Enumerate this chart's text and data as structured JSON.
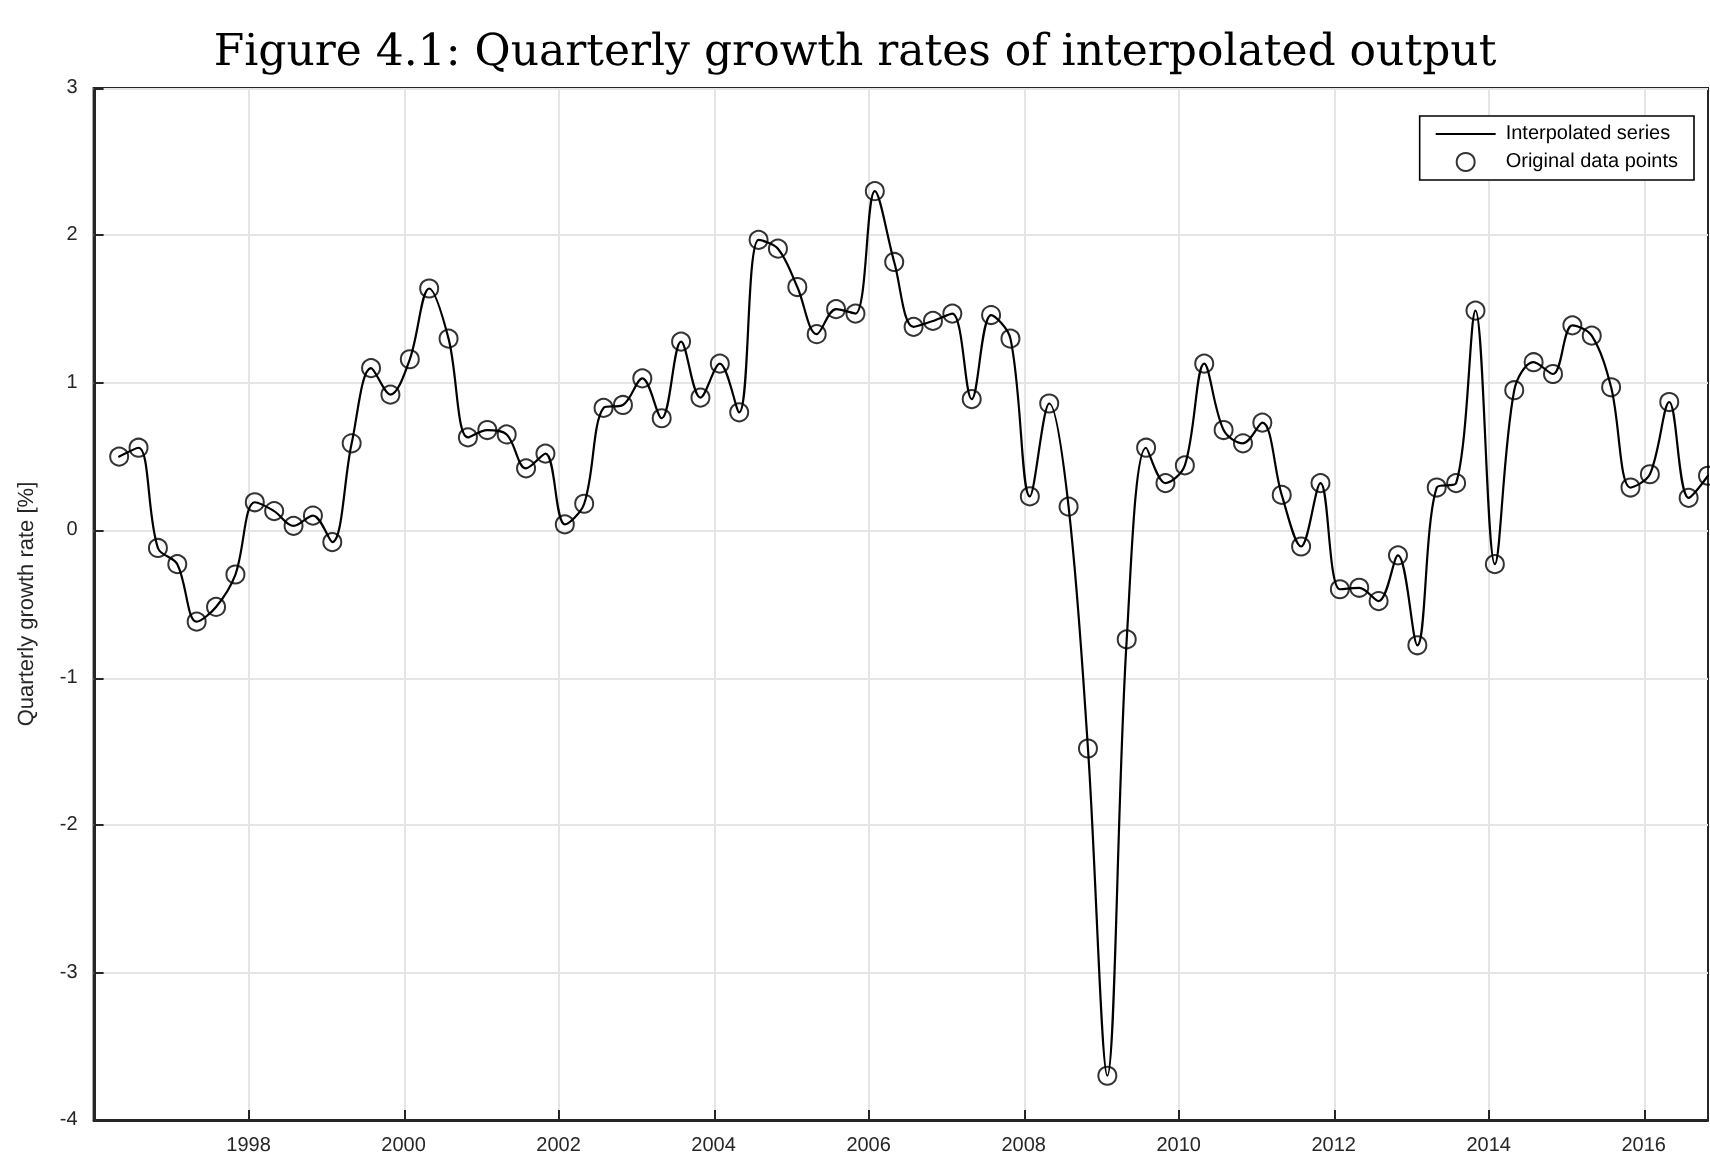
{
  "chart_data": {
    "type": "line",
    "title": "Figure 4.1: Quarterly growth rates of interpolated output",
    "ylabel": "Quarterly growth rate [%]",
    "xlim": [
      1996,
      2016.83
    ],
    "xticks": [
      1998,
      2000,
      2002,
      2004,
      2006,
      2008,
      2010,
      2012,
      2014,
      2016
    ],
    "ylim": [
      -4,
      3
    ],
    "yticks": [
      -4,
      -3,
      -2,
      -1,
      0,
      1,
      2,
      3
    ],
    "grid": true,
    "legend": "top right",
    "x": [
      1996.33,
      1996.58,
      1996.83,
      1997.08,
      1997.33,
      1997.58,
      1997.83,
      1998.08,
      1998.33,
      1998.58,
      1998.83,
      1999.08,
      1999.33,
      1999.58,
      1999.83,
      2000.08,
      2000.33,
      2000.58,
      2000.83,
      2001.08,
      2001.33,
      2001.58,
      2001.83,
      2002.08,
      2002.33,
      2002.58,
      2002.83,
      2003.08,
      2003.33,
      2003.58,
      2003.83,
      2004.08,
      2004.33,
      2004.58,
      2004.83,
      2005.08,
      2005.33,
      2005.58,
      2005.83,
      2006.08,
      2006.33,
      2006.58,
      2006.83,
      2007.08,
      2007.33,
      2007.58,
      2007.83,
      2008.08,
      2008.33,
      2008.58,
      2008.83,
      2009.08,
      2009.33,
      2009.58,
      2009.83,
      2010.08,
      2010.33,
      2010.58,
      2010.83,
      2011.08,
      2011.33,
      2011.58,
      2011.83,
      2012.08,
      2012.33,
      2012.58,
      2012.83,
      2013.08,
      2013.33,
      2013.58,
      2013.83,
      2014.08,
      2014.33,
      2014.58,
      2014.83,
      2015.08,
      2015.33,
      2015.58,
      2015.83,
      2016.08,
      2016.33,
      2016.58,
      2016.83
    ],
    "series": [
      {
        "name": "Interpolated series",
        "color": "#000000",
        "marker": "none",
        "line_style": "solid",
        "values": [
          0.5,
          0.56,
          -0.12,
          -0.23,
          -0.62,
          -0.52,
          -0.3,
          0.19,
          0.13,
          0.03,
          0.1,
          -0.08,
          0.59,
          1.1,
          0.92,
          1.16,
          1.64,
          1.3,
          0.63,
          0.68,
          0.65,
          0.42,
          0.52,
          0.04,
          0.18,
          0.83,
          0.85,
          1.03,
          0.76,
          1.28,
          0.9,
          1.13,
          0.8,
          1.97,
          1.91,
          1.65,
          1.33,
          1.5,
          1.47,
          2.3,
          1.82,
          1.38,
          1.42,
          1.47,
          0.89,
          1.46,
          1.3,
          0.23,
          0.86,
          0.16,
          -1.48,
          -3.7,
          -0.74,
          0.56,
          0.32,
          0.44,
          1.13,
          0.68,
          0.59,
          0.73,
          0.24,
          -0.11,
          0.32,
          -0.4,
          -0.39,
          -0.48,
          -0.17,
          -0.78,
          0.29,
          0.32,
          1.49,
          -0.23,
          0.95,
          1.14,
          1.06,
          1.39,
          1.32,
          0.97,
          0.29,
          0.38,
          0.87,
          0.22,
          0.37
        ]
      },
      {
        "name": "Original data points",
        "type": "scatter",
        "color": "#000000",
        "marker": "circle",
        "values": [
          0.5,
          0.56,
          -0.12,
          -0.23,
          -0.62,
          -0.52,
          -0.3,
          0.19,
          0.13,
          0.03,
          0.1,
          -0.08,
          0.59,
          1.1,
          0.92,
          1.16,
          1.64,
          1.3,
          0.63,
          0.68,
          0.65,
          0.42,
          0.52,
          0.04,
          0.18,
          0.83,
          0.85,
          1.03,
          0.76,
          1.28,
          0.9,
          1.13,
          0.8,
          1.97,
          1.91,
          1.65,
          1.33,
          1.5,
          1.47,
          2.3,
          1.82,
          1.38,
          1.42,
          1.47,
          0.89,
          1.46,
          1.3,
          0.23,
          0.86,
          0.16,
          -1.48,
          -3.7,
          -0.74,
          0.56,
          0.32,
          0.44,
          1.13,
          0.68,
          0.59,
          0.73,
          0.24,
          -0.11,
          0.32,
          -0.4,
          -0.39,
          -0.48,
          -0.17,
          -0.78,
          0.29,
          0.32,
          1.49,
          -0.23,
          0.95,
          1.14,
          1.06,
          1.39,
          1.32,
          0.97,
          0.29,
          0.38,
          0.87,
          0.22,
          0.37
        ]
      }
    ]
  }
}
